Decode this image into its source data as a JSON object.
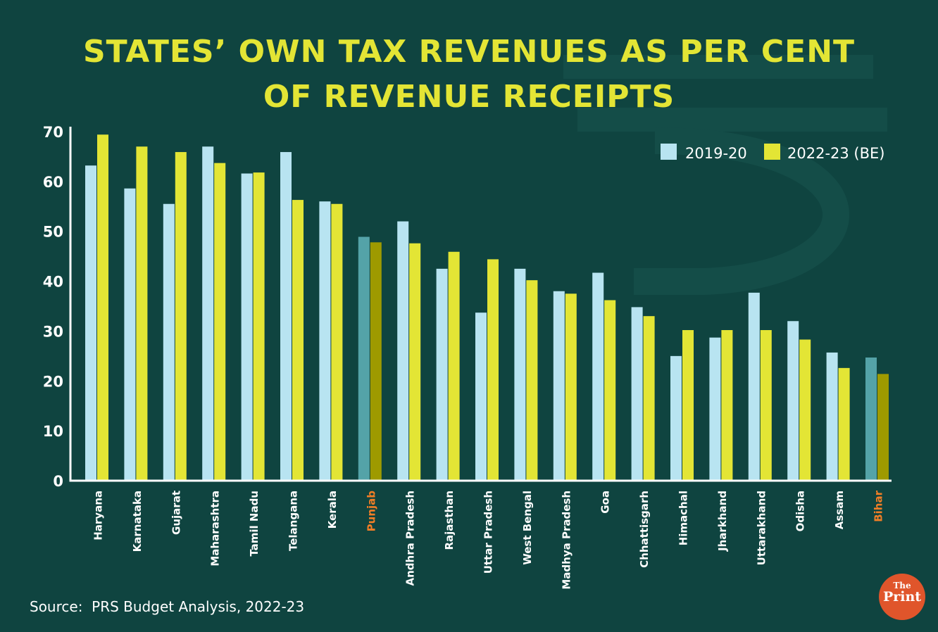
{
  "title": {
    "line1": "STATES’ OWN TAX REVENUES AS PER CENT",
    "line2": "OF REVENUE RECEIPTS"
  },
  "source": "Source:  PRS Budget Analysis, 2022-23",
  "logo": {
    "line1": "The",
    "line2": "Print"
  },
  "colors": {
    "background": "#0f4440",
    "title": "#e3e535",
    "series_2019": "#b8e4f1",
    "series_2022": "#e3e535",
    "highlight_2019": "#54a3a8",
    "highlight_2022": "#9e9a00",
    "highlight_label": "#f07e26",
    "label": "#ffffff"
  },
  "chart_data": {
    "type": "bar",
    "title": "STATES’ OWN TAX REVENUES AS PER CENT OF REVENUE RECEIPTS",
    "xlabel": "",
    "ylabel": "",
    "ylim": [
      0,
      70
    ],
    "yticks": [
      0,
      10,
      20,
      30,
      40,
      50,
      60,
      70
    ],
    "legend_position": "top-right",
    "highlighted": [
      "Punjab",
      "Bihar"
    ],
    "categories": [
      "Haryana",
      "Karnataka",
      "Gujarat",
      "Maharashtra",
      "Tamil Nadu",
      "Telangana",
      "Kerala",
      "Punjab",
      "Andhra Pradesh",
      "Rajasthan",
      "Uttar Pradesh",
      "West Bengal",
      "Madhya Pradesh",
      "Goa",
      "Chhattisgarh",
      "Himachal",
      "Jharkhand",
      "Uttarakhand",
      "Odisha",
      "Assam",
      "Bihar"
    ],
    "series": [
      {
        "name": "2019-20",
        "values": [
          63.2,
          58.6,
          55.5,
          67.0,
          61.6,
          65.9,
          56.0,
          48.9,
          52.0,
          42.5,
          33.7,
          42.5,
          38.0,
          41.7,
          34.8,
          25.0,
          28.7,
          37.7,
          32.0,
          25.7,
          24.7
        ]
      },
      {
        "name": "2022-23 (BE)",
        "values": [
          69.4,
          67.0,
          65.9,
          63.7,
          61.8,
          56.3,
          55.5,
          47.8,
          47.6,
          45.9,
          44.4,
          40.2,
          37.5,
          36.2,
          33.0,
          30.2,
          30.2,
          30.2,
          28.3,
          22.6,
          21.4
        ]
      }
    ]
  }
}
